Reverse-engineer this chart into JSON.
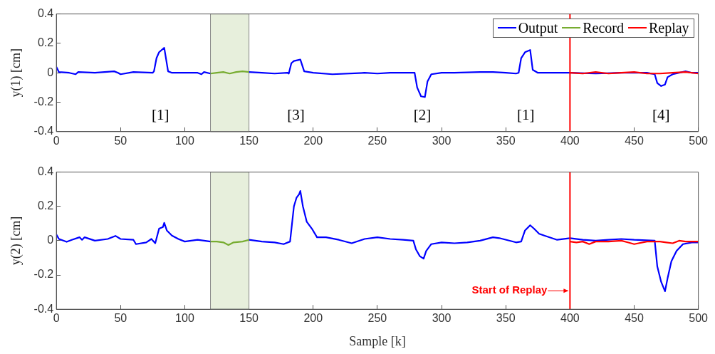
{
  "chart_data": [
    {
      "type": "line",
      "ylabel": "y(1) [cm]",
      "xlim": [
        0,
        500
      ],
      "xticks": [
        0,
        50,
        100,
        150,
        200,
        250,
        300,
        350,
        400,
        450,
        500
      ],
      "ylim": [
        -0.4,
        0.4
      ],
      "yticks": [
        -0.4,
        -0.2,
        0,
        0.2,
        0.4
      ],
      "legend": "top right",
      "grid": false,
      "series": [
        {
          "name": "Output",
          "color": "#0000ff",
          "x": [
            0,
            2,
            10,
            15,
            17,
            30,
            45,
            48,
            50,
            60,
            75,
            76,
            78,
            80,
            84,
            87,
            90,
            100,
            110,
            113,
            115,
            120,
            135,
            150,
            160,
            170,
            180,
            181,
            183,
            185,
            190,
            193,
            200,
            215,
            240,
            250,
            260,
            270,
            279,
            281,
            284,
            287,
            289,
            292,
            300,
            310,
            330,
            340,
            350,
            358,
            360,
            362,
            365,
            369,
            371,
            375,
            390,
            400,
            420,
            440,
            460,
            466,
            468,
            471,
            474,
            476,
            480,
            490,
            495,
            500
          ],
          "values": [
            0.04,
            0.005,
            0,
            -0.01,
            0.005,
            0,
            0.01,
            0,
            -0.01,
            0.005,
            0,
            0.01,
            0.1,
            0.14,
            0.17,
            0.01,
            0,
            0,
            0,
            -0.01,
            0.005,
            -0.005,
            null,
            0.005,
            0,
            -0.005,
            0,
            -0.005,
            0.065,
            0.08,
            0.09,
            0.01,
            0,
            -0.01,
            0,
            -0.005,
            0,
            0,
            0,
            -0.1,
            -0.16,
            -0.165,
            -0.06,
            -0.01,
            0,
            0,
            0.005,
            0.005,
            0,
            -0.005,
            0,
            0.1,
            0.14,
            0.155,
            0.02,
            0,
            0,
            0,
            -0.005,
            0,
            0,
            -0.01,
            -0.07,
            -0.09,
            -0.08,
            -0.03,
            -0.01,
            0.01,
            0,
            0
          ]
        },
        {
          "name": "Record",
          "color": "#77ac30",
          "x": [
            120,
            125,
            130,
            135,
            140,
            145,
            150
          ],
          "values": [
            -0.005,
            0,
            0.005,
            -0.005,
            0.005,
            0.01,
            0.005
          ]
        },
        {
          "name": "Replay",
          "color": "#ff0000",
          "x": [
            400,
            410,
            420,
            430,
            440,
            450,
            460,
            470,
            480,
            490,
            500
          ],
          "values": [
            0,
            -0.005,
            0.005,
            -0.005,
            0,
            0.005,
            -0.005,
            -0.005,
            0,
            0.005,
            -0.005
          ]
        }
      ],
      "bands": [
        {
          "axis": "x",
          "from": 120,
          "to": 150,
          "color": "#e7efdc"
        }
      ],
      "ref_lines": [
        {
          "axis": "x",
          "value": 400,
          "color": "#ff0000"
        }
      ],
      "annotations": [
        "[1]",
        "[3]",
        "[2]",
        "[1]",
        "[4]"
      ]
    },
    {
      "type": "line",
      "ylabel": "y(2) [cm]",
      "xlabel": "Sample [k]",
      "xlim": [
        0,
        500
      ],
      "xticks": [
        0,
        50,
        100,
        150,
        200,
        250,
        300,
        350,
        400,
        450,
        500
      ],
      "ylim": [
        -0.4,
        0.4
      ],
      "yticks": [
        -0.4,
        -0.2,
        0,
        0.2,
        0.4
      ],
      "grid": false,
      "series": [
        {
          "color": "#0000ff",
          "x": [
            0,
            2,
            8,
            12,
            18,
            20,
            22,
            30,
            40,
            46,
            50,
            60,
            62,
            70,
            74,
            77,
            80,
            83,
            84,
            86,
            90,
            95,
            100,
            110,
            115,
            120,
            135,
            150,
            160,
            170,
            177,
            182,
            185,
            187,
            189,
            190,
            192,
            195,
            199,
            203,
            210,
            220,
            230,
            240,
            250,
            260,
            270,
            278,
            280,
            283,
            286,
            288,
            292,
            300,
            310,
            320,
            330,
            340,
            345,
            358,
            362,
            365,
            369,
            372,
            376,
            380,
            390,
            400,
            410,
            420,
            430,
            440,
            450,
            466,
            468,
            471,
            474,
            476,
            479,
            483,
            488,
            495,
            500
          ],
          "values": [
            0.036,
            0.01,
            -0.007,
            0.005,
            0.02,
            0.005,
            0.02,
            0,
            0.01,
            0.028,
            0.01,
            0.005,
            -0.02,
            -0.01,
            0.01,
            -0.015,
            0.07,
            0.08,
            0.104,
            0.06,
            0.03,
            0.01,
            -0.005,
            0.005,
            0,
            -0.005,
            null,
            0.005,
            -0.005,
            -0.01,
            -0.02,
            -0.005,
            0.2,
            0.25,
            0.27,
            0.29,
            0.2,
            0.11,
            0.07,
            0.02,
            0.02,
            0.005,
            -0.015,
            0.01,
            0.02,
            0.01,
            0.005,
            0,
            -0.05,
            -0.09,
            -0.105,
            -0.06,
            -0.02,
            -0.01,
            -0.015,
            -0.01,
            0,
            0.02,
            0.015,
            -0.01,
            -0.005,
            0.06,
            0.09,
            0.07,
            0.04,
            0.03,
            0.005,
            0.015,
            0.005,
            0,
            0.005,
            0.01,
            0.005,
            0,
            -0.15,
            -0.24,
            -0.295,
            -0.22,
            -0.12,
            -0.06,
            -0.02,
            -0.01,
            -0.01
          ]
        },
        {
          "color": "#77ac30",
          "x": [
            120,
            125,
            130,
            134,
            138,
            145,
            150
          ],
          "values": [
            -0.005,
            -0.005,
            -0.01,
            -0.025,
            -0.01,
            -0.005,
            0.005
          ]
        },
        {
          "color": "#ff0000",
          "x": [
            400,
            405,
            410,
            415,
            420,
            430,
            440,
            445,
            450,
            460,
            470,
            475,
            480,
            485,
            490,
            500
          ],
          "values": [
            -0.005,
            -0.01,
            -0.005,
            -0.02,
            -0.005,
            -0.005,
            0,
            -0.01,
            -0.02,
            -0.005,
            -0.005,
            -0.01,
            -0.015,
            0,
            -0.005,
            -0.005
          ]
        }
      ],
      "bands": [
        {
          "axis": "x",
          "from": 120,
          "to": 150,
          "color": "#e7efdc"
        }
      ],
      "ref_lines": [
        {
          "axis": "x",
          "value": 400,
          "label": "Start of Replay",
          "color": "#ff0000"
        }
      ]
    }
  ]
}
